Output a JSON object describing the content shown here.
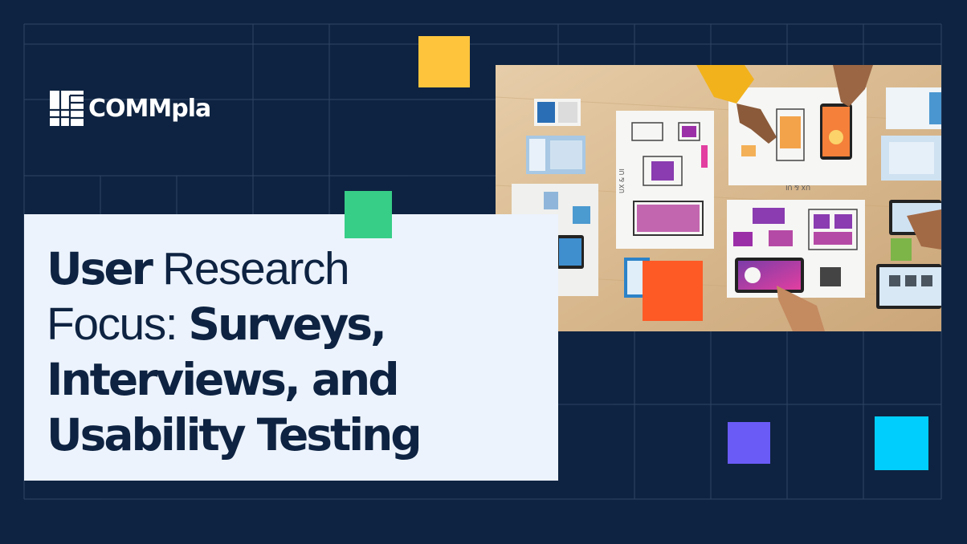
{
  "brand": {
    "name": "COMMpla",
    "icon": "commpla-logo-icon"
  },
  "headline": {
    "line1_bold": "User",
    "line1_rest": " Research",
    "line2_light": "Focus: ",
    "line2_bold": "Surveys,",
    "line3_bold": "Interviews, and",
    "line4_bold": "Usability Testing"
  },
  "photo": {
    "subject": "ux-wireframe-sketches-photo",
    "sheet_label_1": "UX & UI",
    "sheet_label_2": "UX & UI"
  },
  "colors": {
    "background": "#0e2341",
    "card": "#ecf3fd",
    "accent_yellow": "#fec53c",
    "accent_green": "#37ce87",
    "accent_orange": "#fe5a26",
    "accent_purple": "#6a5bf7",
    "accent_cyan": "#00cffd"
  }
}
